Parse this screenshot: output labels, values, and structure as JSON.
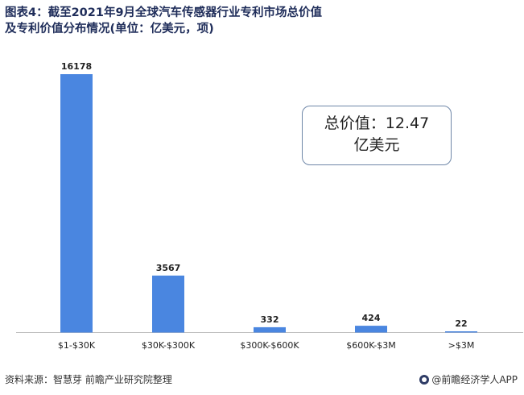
{
  "title": "图表4：截至2021年9月全球汽车传感器行业专利市场总价值及专利价值分布情况(单位：亿美元，项)",
  "annotation": {
    "line1": "总价值：12.47",
    "line2": "亿美元"
  },
  "footer": {
    "source": "资料来源：智慧芽 前瞻产业研究院整理",
    "brand": "@前瞻经济学人APP"
  },
  "colors": {
    "bar": "#4a86e0",
    "axis": "#bfbfbf"
  },
  "chart_data": {
    "type": "bar",
    "categories": [
      "$1-$30K",
      "$30K-$300K",
      "$300K-$600K",
      "$600K-$3M",
      ">$3M"
    ],
    "values": [
      16178,
      3567,
      332,
      424,
      22
    ],
    "ylim": [
      0,
      16178
    ],
    "grid": false,
    "data_labels": true
  }
}
